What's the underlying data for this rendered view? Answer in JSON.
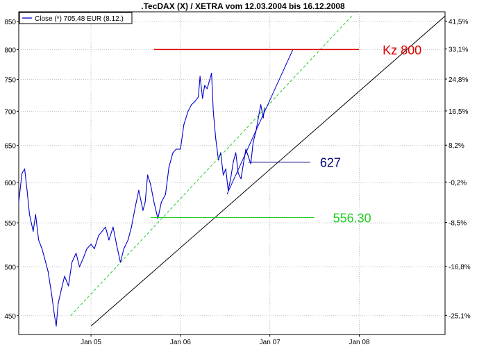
{
  "chart_data": {
    "type": "line",
    "title": ".TecDAX (X) / XETRA vom 12.03.2004 bis 16.12.2008",
    "legend": {
      "label": "Close (*) 705,48 EUR (8.12.)",
      "placement": "top-left",
      "color": "#0000cc"
    },
    "grid": true,
    "y_scale": "log",
    "ylim": [
      432,
      868
    ],
    "xlim": [
      "2004-03-12",
      "2008-12-16"
    ],
    "left_ticks": [
      450,
      500,
      550,
      600,
      650,
      700,
      750,
      800,
      850
    ],
    "right_ticks": [
      "41,5%",
      "33,1%",
      "24,8%",
      "16,5%",
      "8,2%",
      "-0,2%",
      "-8,5%",
      "-16,8%",
      "-25,1%"
    ],
    "right_tick_values": [
      850.7,
      801.0,
      750.5,
      700.5,
      650.5,
      600.7,
      550.4,
      500.4,
      450.3
    ],
    "x_ticks": [
      {
        "label": "Jan 05",
        "date": "2005-01-01"
      },
      {
        "label": "Jan 06",
        "date": "2006-01-01"
      },
      {
        "label": "Jan 07",
        "date": "2007-01-01"
      },
      {
        "label": "Jan 08",
        "date": "2008-01-01"
      }
    ],
    "series": [
      {
        "name": "Close (*)",
        "color": "#0000cc",
        "x": [
          "2004-03-12",
          "2004-03-25",
          "2004-04-05",
          "2004-04-15",
          "2004-04-25",
          "2004-05-10",
          "2004-05-20",
          "2004-06-01",
          "2004-06-15",
          "2004-06-30",
          "2004-07-10",
          "2004-07-25",
          "2004-08-05",
          "2004-08-12",
          "2004-08-20",
          "2004-09-01",
          "2004-09-15",
          "2004-10-01",
          "2004-10-15",
          "2004-11-01",
          "2004-11-15",
          "2004-12-01",
          "2004-12-15",
          "2005-01-01",
          "2005-01-15",
          "2005-02-01",
          "2005-02-15",
          "2005-03-01",
          "2005-03-15",
          "2005-04-01",
          "2005-04-15",
          "2005-05-01",
          "2005-05-15",
          "2005-06-01",
          "2005-06-15",
          "2005-07-01",
          "2005-07-15",
          "2005-08-01",
          "2005-08-10",
          "2005-08-20",
          "2005-09-01",
          "2005-09-15",
          "2005-10-01",
          "2005-10-15",
          "2005-11-01",
          "2005-11-15",
          "2005-12-01",
          "2005-12-15",
          "2006-01-01",
          "2006-01-15",
          "2006-02-01",
          "2006-02-15",
          "2006-03-01",
          "2006-03-15",
          "2006-03-22",
          "2006-04-01",
          "2006-04-10",
          "2006-04-20",
          "2006-05-01",
          "2006-05-08",
          "2006-05-15",
          "2006-05-25",
          "2006-06-05",
          "2006-06-14",
          "2006-06-25",
          "2006-07-05",
          "2006-07-15",
          "2006-07-25",
          "2006-08-05",
          "2006-08-15",
          "2006-08-25",
          "2006-09-05",
          "2006-09-15",
          "2006-09-25",
          "2006-10-05",
          "2006-10-15",
          "2006-10-25",
          "2006-11-05",
          "2006-11-15",
          "2006-11-25",
          "2006-12-05",
          "2006-12-10"
        ],
        "y": [
          575,
          612,
          618,
          590,
          560,
          540,
          560,
          530,
          520,
          505,
          495,
          470,
          450,
          440,
          462,
          475,
          490,
          480,
          505,
          515,
          500,
          510,
          520,
          525,
          520,
          535,
          540,
          545,
          530,
          545,
          525,
          505,
          520,
          530,
          545,
          570,
          590,
          565,
          575,
          610,
          598,
          575,
          555,
          575,
          585,
          620,
          640,
          645,
          645,
          680,
          700,
          710,
          715,
          722,
          755,
          720,
          740,
          735,
          750,
          760,
          700,
          660,
          630,
          640,
          610,
          618,
          590,
          605,
          628,
          640,
          612,
          605,
          625,
          645,
          635,
          625,
          655,
          670,
          690,
          710,
          690,
          705
        ]
      }
    ],
    "trendlines": [
      {
        "name": "long-term-support",
        "color": "#000000",
        "from": {
          "date": "2005-01-01",
          "value": 440
        },
        "to": {
          "date": "2008-12-16",
          "value": 860
        }
      },
      {
        "name": "dashed-trend",
        "color": "#22cc22",
        "from": {
          "date": "2004-10-10",
          "value": 450
        },
        "to": {
          "date": "2007-12-01",
          "value": 860
        }
      },
      {
        "name": "short-term-trend",
        "color": "#0000cc",
        "from": {
          "date": "2006-07-10",
          "value": 585
        },
        "to": {
          "date": "2007-04-05",
          "value": 800
        }
      }
    ],
    "levels": [
      {
        "name": "kz-800",
        "value": 800,
        "label": "Kz 800",
        "color": "#dd0000",
        "from": "2005-09-15",
        "to": "2007-12-31"
      },
      {
        "name": "level-627",
        "value": 627,
        "label": "627",
        "color": "#000080",
        "from": "2006-10-05",
        "to": "2007-06-15"
      },
      {
        "name": "level-556",
        "value": 556.3,
        "label": "556.30",
        "color": "#22cc22",
        "from": "2005-09-01",
        "to": "2007-07-01"
      }
    ]
  }
}
